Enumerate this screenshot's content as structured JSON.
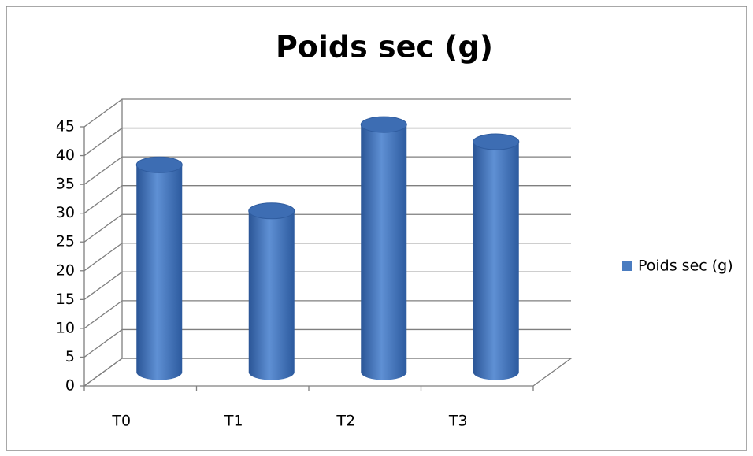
{
  "chart_data": {
    "type": "bar3d",
    "title": "Poids sec (g)",
    "categories": [
      "T0",
      "T1",
      "T2",
      "T3"
    ],
    "series": [
      {
        "name": "Poids sec (g)",
        "color": "#4a7cc0",
        "values": [
          36,
          28,
          43,
          40
        ]
      }
    ],
    "ylim": [
      0,
      45
    ],
    "yticks": [
      0,
      5,
      10,
      15,
      20,
      25,
      30,
      35,
      40,
      45
    ],
    "grid": true,
    "legend": "right"
  }
}
